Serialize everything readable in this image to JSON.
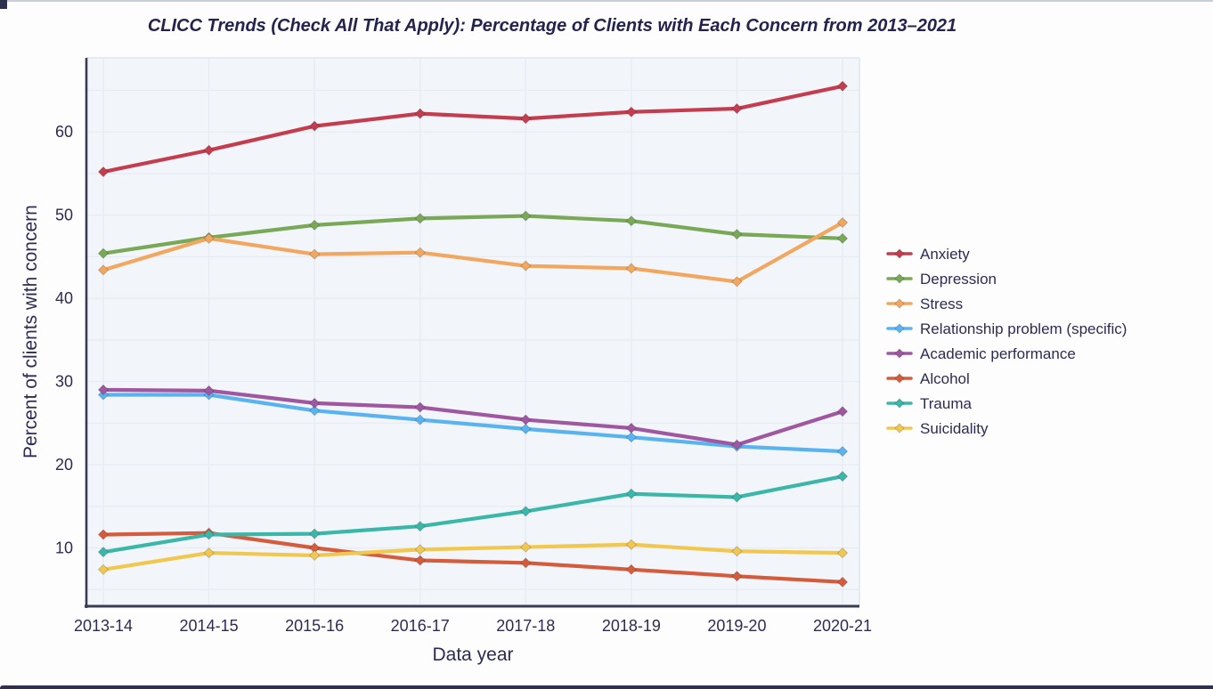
{
  "window": {
    "top_edge": "window-top-edge",
    "bottom_edge": "window-bottom-edge"
  },
  "colors": {
    "page_background": "#fdfdfe",
    "plot_background": "#f2f5f9",
    "gridline": "#e6ebf4",
    "plot_frame": "#dfe5ef",
    "axis_line": "#3a3a55",
    "text": "#2c2c52",
    "window_edge": "#2f2f4e"
  },
  "chart_data": {
    "type": "line",
    "title": "CLICC Trends (Check All That Apply): Percentage of Clients with Each Concern from 2013–2021",
    "xlabel": "Data year",
    "ylabel": "Percent of clients with concern",
    "categories": [
      "2013-14",
      "2014-15",
      "2015-16",
      "2016-17",
      "2017-18",
      "2018-19",
      "2019-20",
      "2020-21"
    ],
    "yticks": [
      10,
      20,
      30,
      40,
      50,
      60
    ],
    "ylim": [
      3.1,
      68.9
    ],
    "grid": true,
    "grid_step": 5,
    "legend_position": "right",
    "marker": "diamond",
    "series": [
      {
        "name": "Anxiety",
        "color": "#c43d4f",
        "values": [
          55.2,
          57.8,
          60.7,
          62.2,
          61.6,
          62.4,
          62.8,
          65.5
        ]
      },
      {
        "name": "Depression",
        "color": "#79a857",
        "values": [
          45.4,
          47.3,
          48.8,
          49.6,
          49.9,
          49.3,
          47.7,
          47.2
        ]
      },
      {
        "name": "Stress",
        "color": "#f1a75f",
        "values": [
          43.4,
          47.2,
          45.3,
          45.5,
          43.9,
          43.6,
          42.0,
          49.1
        ]
      },
      {
        "name": "Relationship problem (specific)",
        "color": "#58b3f0",
        "values": [
          28.4,
          28.4,
          26.5,
          25.4,
          24.3,
          23.3,
          22.2,
          21.6
        ]
      },
      {
        "name": "Academic performance",
        "color": "#9e57a0",
        "values": [
          29.0,
          28.9,
          27.4,
          26.9,
          25.4,
          24.4,
          22.4,
          26.4
        ]
      },
      {
        "name": "Alcohol",
        "color": "#d45c3d",
        "values": [
          11.6,
          11.8,
          10.0,
          8.5,
          8.2,
          7.4,
          6.6,
          5.9
        ]
      },
      {
        "name": "Trauma",
        "color": "#3ab7a9",
        "values": [
          9.5,
          11.6,
          11.7,
          12.6,
          14.4,
          16.5,
          16.1,
          18.6
        ]
      },
      {
        "name": "Suicidality",
        "color": "#f1c84f",
        "values": [
          7.4,
          9.4,
          9.1,
          9.8,
          10.1,
          10.4,
          9.6,
          9.4
        ]
      }
    ]
  }
}
